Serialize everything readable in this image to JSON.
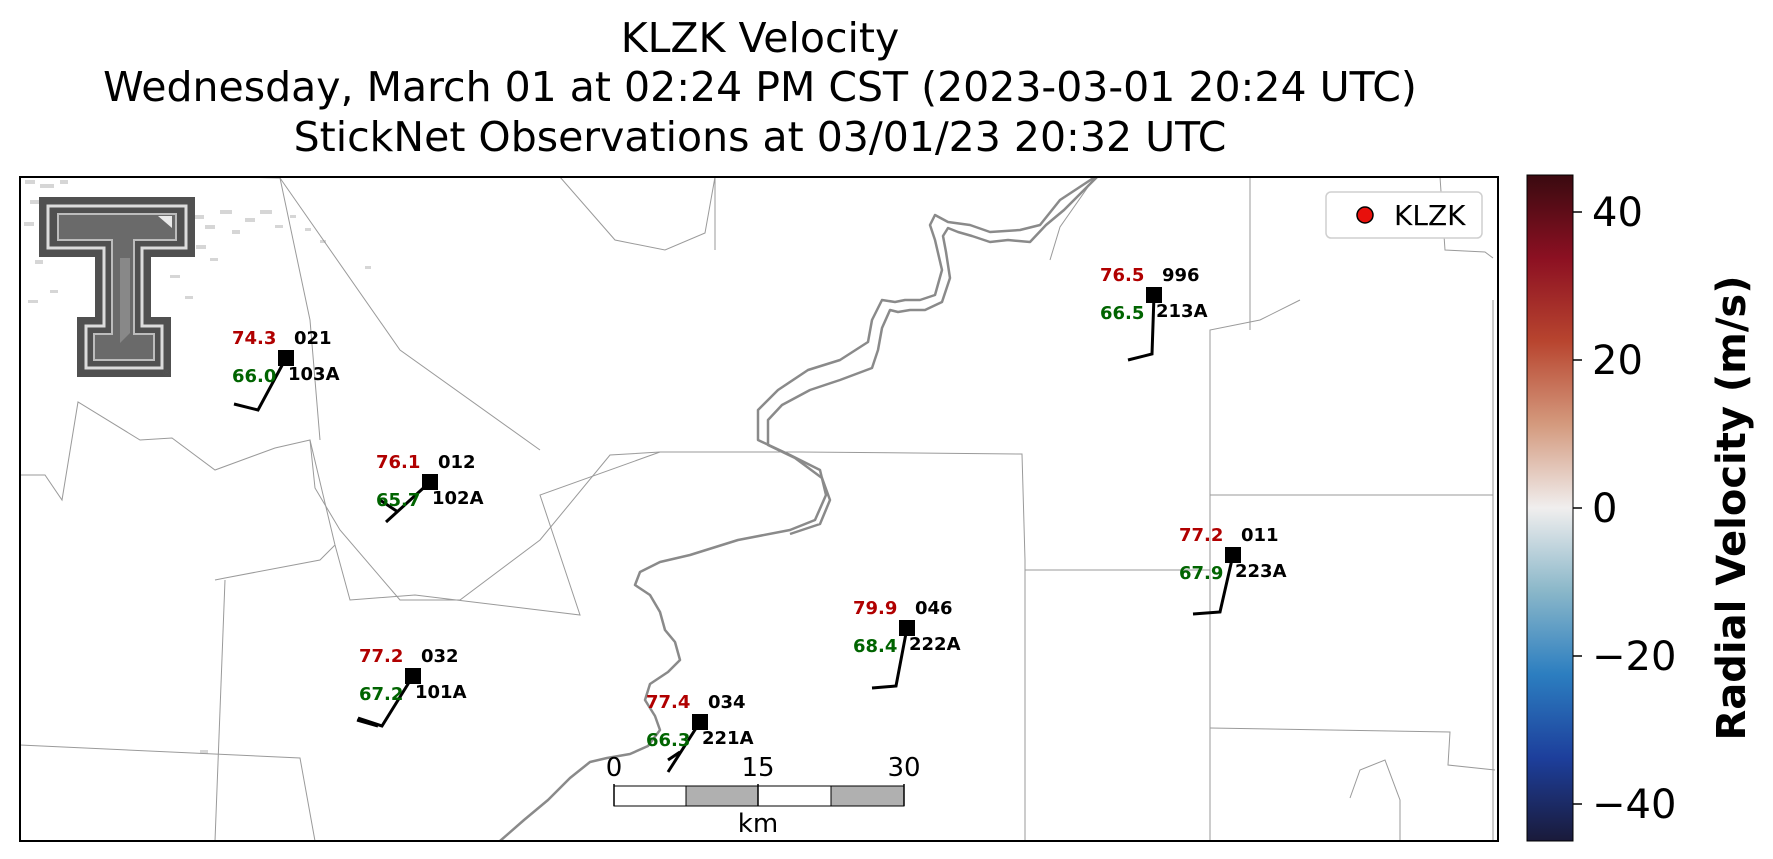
{
  "title": {
    "line1": "KLZK Velocity",
    "line2": "Wednesday, March 01 at 02:24 PM CST (2023-03-01 20:24 UTC)",
    "line3": "StickNet Observations at 03/01/23 20:32 UTC"
  },
  "legend": {
    "label": "KLZK",
    "marker_color": "#e8100c"
  },
  "colorbar": {
    "label": "Radial Velocity (m/s)",
    "min": -45,
    "max": 45,
    "ticks": [
      {
        "value": 40,
        "label": "40"
      },
      {
        "value": 20,
        "label": "20"
      },
      {
        "value": 0,
        "label": "0"
      },
      {
        "value": -20,
        "label": "−20"
      },
      {
        "value": -40,
        "label": "−40"
      }
    ],
    "colors": [
      "#1a1a3a",
      "#1d3f9c",
      "#2c7ec0",
      "#8ab7c9",
      "#f0eeee",
      "#d49a7e",
      "#b8452f",
      "#8c1022",
      "#3a0a10"
    ]
  },
  "scalebar": {
    "ticks": [
      "0",
      "15",
      "30"
    ],
    "unit": "km"
  },
  "stations": [
    {
      "temp": "74.3",
      "dew": "66.0",
      "id_top": "021",
      "id_bottom": "103A"
    },
    {
      "temp": "76.1",
      "dew": "65.7",
      "id_top": "012",
      "id_bottom": "102A"
    },
    {
      "temp": "77.2",
      "dew": "67.2",
      "id_top": "032",
      "id_bottom": "101A"
    },
    {
      "temp": "77.4",
      "dew": "66.3",
      "id_top": "034",
      "id_bottom": "221A"
    },
    {
      "temp": "79.9",
      "dew": "68.4",
      "id_top": "046",
      "id_bottom": "222A"
    },
    {
      "temp": "76.5",
      "dew": "66.5",
      "id_top": "996",
      "id_bottom": "213A"
    },
    {
      "temp": "77.2",
      "dew": "67.9",
      "id_top": "011",
      "id_bottom": "223A"
    }
  ],
  "logo": {
    "name": "texas-tech-double-t-logo",
    "registered_mark": "®"
  }
}
